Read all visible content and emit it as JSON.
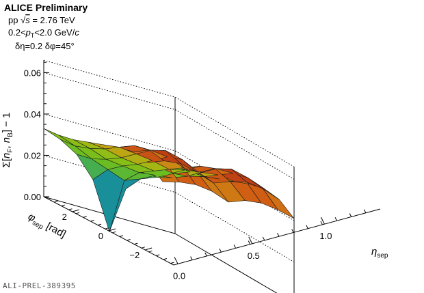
{
  "header": {
    "title": "ALICE Preliminary",
    "line2": "pp √s = 2.76 TeV",
    "line3": "0.2<pₜ<2.0 GeV/c",
    "line4": "δη=0.2  δφ=45°"
  },
  "footer": {
    "id": "ALI-PREL-389395"
  },
  "chart_data": {
    "type": "surface",
    "title": "ALICE Preliminary",
    "zlabel": "Σ[n_F, n_B] − 1",
    "xlabel": "η_sep",
    "ylabel": "φ_sep  [rad]",
    "zlim": [
      0,
      0.066
    ],
    "xlim": [
      0,
      1.6
    ],
    "ylim": [
      -3.14,
      3.14
    ],
    "z_ticks": [
      "0.00",
      "0.02",
      "0.04",
      "0.06"
    ],
    "x_ticks": [
      "0.0",
      "0.5",
      "1.0"
    ],
    "y_ticks": [
      "2",
      "0",
      "−2"
    ],
    "grid": "on",
    "eta_sep": [
      0.0,
      0.2,
      0.4,
      0.6,
      0.8,
      1.0,
      1.2,
      1.4,
      1.6
    ],
    "phi_sep": [
      -3.14,
      -2.36,
      -1.57,
      -0.79,
      0.0,
      0.79,
      1.57,
      2.36,
      3.14
    ],
    "z_values": [
      [
        0.033,
        0.034,
        0.036,
        0.039,
        0.042,
        0.045,
        0.047,
        0.046,
        0.041
      ],
      [
        0.03,
        0.031,
        0.034,
        0.038,
        0.043,
        0.048,
        0.05,
        0.049,
        0.043
      ],
      [
        0.025,
        0.027,
        0.031,
        0.036,
        0.042,
        0.048,
        0.052,
        0.05,
        0.044
      ],
      [
        0.015,
        0.024,
        0.03,
        0.035,
        0.041,
        0.047,
        0.05,
        0.048,
        0.043
      ],
      [
        -0.008,
        0.021,
        0.029,
        0.034,
        0.039,
        0.044,
        0.046,
        0.045,
        0.04
      ],
      [
        0.015,
        0.024,
        0.03,
        0.035,
        0.041,
        0.047,
        0.05,
        0.048,
        0.043
      ],
      [
        0.025,
        0.027,
        0.031,
        0.036,
        0.042,
        0.048,
        0.052,
        0.05,
        0.044
      ],
      [
        0.03,
        0.031,
        0.034,
        0.038,
        0.043,
        0.048,
        0.05,
        0.049,
        0.043
      ],
      [
        0.033,
        0.034,
        0.036,
        0.039,
        0.042,
        0.045,
        0.047,
        0.046,
        0.041
      ]
    ]
  }
}
